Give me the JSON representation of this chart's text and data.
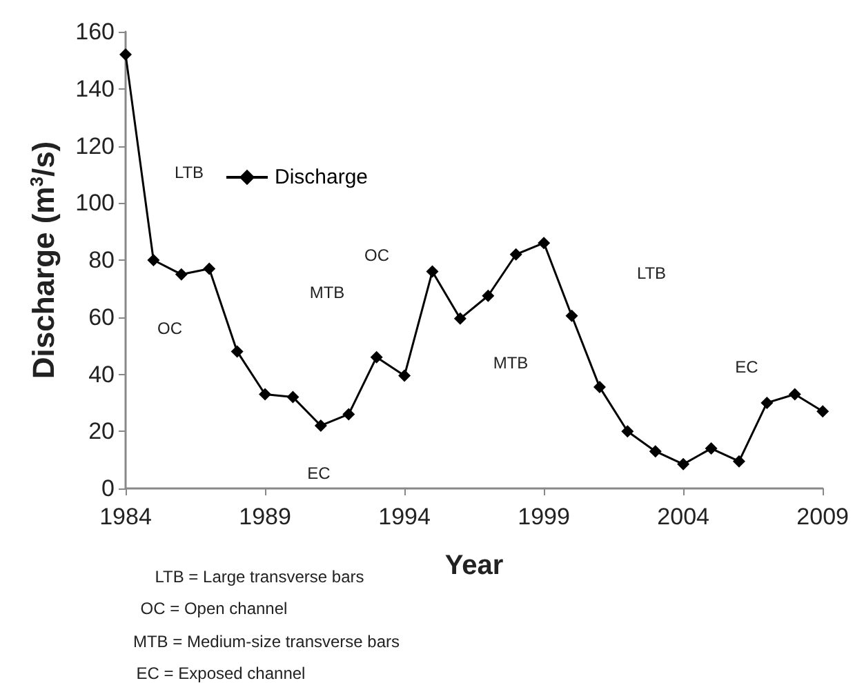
{
  "chart_data": {
    "type": "line",
    "xlabel": "Year",
    "ylabel": "Discharge (m$^{3}$/s)",
    "x": [
      1984,
      1985,
      1986,
      1987,
      1988,
      1989,
      1990,
      1991,
      1992,
      1993,
      1994,
      1995,
      1996,
      1997,
      1998,
      1999,
      2000,
      2001,
      2002,
      2003,
      2004,
      2005,
      2006,
      2007,
      2008,
      2009
    ],
    "series": [
      {
        "name": "Discharge",
        "color": "#000000",
        "values": [
          152,
          80,
          75,
          77,
          48,
          33,
          32,
          22,
          26,
          46,
          39.5,
          76,
          59.5,
          67.5,
          82,
          86,
          60.5,
          35.5,
          20,
          13,
          8.5,
          14,
          9.5,
          30,
          33,
          27
        ]
      }
    ],
    "xlim": [
      1984,
      2009
    ],
    "xticks": [
      1984,
      1989,
      1994,
      1999,
      2004,
      2009
    ],
    "ylim": [
      0,
      160
    ],
    "yticks": [
      0,
      20,
      40,
      60,
      80,
      100,
      120,
      140,
      160
    ],
    "grid": false,
    "legend": "top left",
    "marker": "diamond",
    "line_style": "solid",
    "annotations": [
      "LTB",
      "OC",
      "MTB",
      "EC",
      "OC",
      "MTB",
      "LTB",
      "EC",
      "LTB = Large transverse bars",
      "OC = Open channel",
      "MTB = Medium-size transverse bars",
      "EC = Exposed channel"
    ]
  }
}
